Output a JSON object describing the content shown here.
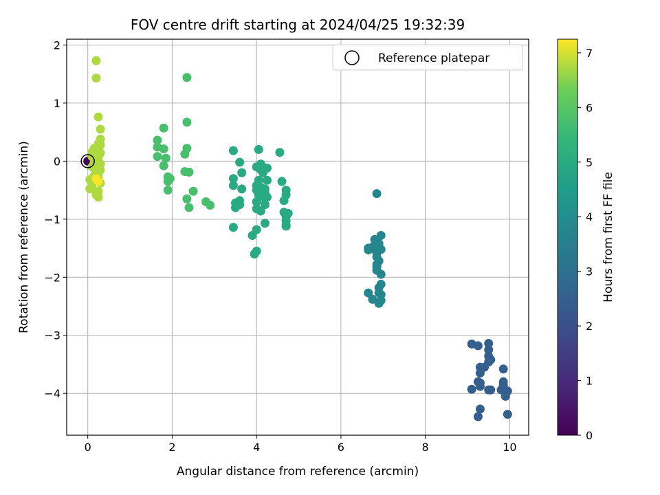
{
  "chart_data": {
    "type": "scatter",
    "title": "FOV centre drift starting at 2024/04/25 19:32:39",
    "xlabel": "Angular distance from reference (arcmin)",
    "ylabel": "Rotation from reference (arcmin)",
    "xlim": [
      -0.5,
      10.45
    ],
    "ylim": [
      -4.72,
      2.1
    ],
    "xticks": [
      0,
      2,
      4,
      6,
      8,
      10
    ],
    "yticks": [
      2,
      1,
      0,
      -1,
      -2,
      -3,
      -4
    ],
    "tick_labels_x": [
      "0",
      "2",
      "4",
      "6",
      "8",
      "10"
    ],
    "tick_labels_y": [
      "2",
      "1",
      "0",
      "−1",
      "−2",
      "−3",
      "−4"
    ],
    "grid": true,
    "colormap": "viridis",
    "colorbar": {
      "label": "Hours from first FF file",
      "range": [
        0,
        7.25
      ],
      "ticks": [
        0,
        1,
        2,
        3,
        4,
        5,
        6,
        7
      ],
      "tick_labels": [
        "0",
        "1",
        "2",
        "3",
        "4",
        "5",
        "6",
        "7"
      ]
    },
    "legend": {
      "position": "top-right",
      "entries": [
        "Reference platepar"
      ]
    },
    "reference_point": {
      "x": 0,
      "y": 0
    },
    "series": [
      {
        "points": [
          [
            0.0,
            0.0,
            0.1
          ],
          [
            9.1,
            -3.15,
            2.45
          ],
          [
            9.25,
            -3.18,
            2.45
          ],
          [
            9.5,
            -3.14,
            2.45
          ],
          [
            9.5,
            -3.25,
            2.45
          ],
          [
            9.5,
            -3.36,
            2.45
          ],
          [
            9.55,
            -3.42,
            2.45
          ],
          [
            9.5,
            -3.46,
            2.45
          ],
          [
            9.3,
            -3.55,
            2.45
          ],
          [
            9.4,
            -3.55,
            2.45
          ],
          [
            9.85,
            -3.58,
            2.45
          ],
          [
            9.3,
            -3.65,
            2.45
          ],
          [
            9.25,
            -3.8,
            2.45
          ],
          [
            9.3,
            -3.82,
            2.45
          ],
          [
            9.85,
            -3.8,
            2.45
          ],
          [
            9.3,
            -3.88,
            2.45
          ],
          [
            9.85,
            -3.86,
            2.45
          ],
          [
            9.1,
            -3.93,
            2.45
          ],
          [
            9.5,
            -3.94,
            2.45
          ],
          [
            9.55,
            -3.94,
            2.45
          ],
          [
            9.8,
            -3.94,
            2.45
          ],
          [
            9.95,
            -3.96,
            2.45
          ],
          [
            9.9,
            -4.05,
            2.45
          ],
          [
            9.3,
            -4.27,
            2.45
          ],
          [
            9.95,
            -4.36,
            2.45
          ],
          [
            9.25,
            -4.4,
            2.45
          ],
          [
            6.85,
            -0.56,
            3.75
          ],
          [
            6.95,
            -1.28,
            3.75
          ],
          [
            6.8,
            -1.35,
            3.75
          ],
          [
            6.9,
            -1.42,
            3.75
          ],
          [
            6.75,
            -1.48,
            3.75
          ],
          [
            6.65,
            -1.5,
            3.75
          ],
          [
            6.8,
            -1.52,
            3.75
          ],
          [
            6.95,
            -1.52,
            3.75
          ],
          [
            6.65,
            -1.53,
            3.75
          ],
          [
            6.85,
            -1.58,
            3.75
          ],
          [
            6.85,
            -1.65,
            3.75
          ],
          [
            6.9,
            -1.72,
            3.75
          ],
          [
            6.85,
            -1.78,
            3.75
          ],
          [
            6.85,
            -1.82,
            3.75
          ],
          [
            6.85,
            -1.88,
            3.75
          ],
          [
            6.95,
            -1.95,
            3.75
          ],
          [
            6.95,
            -2.12,
            3.75
          ],
          [
            6.9,
            -2.18,
            3.75
          ],
          [
            6.65,
            -2.27,
            3.75
          ],
          [
            6.9,
            -2.27,
            3.75
          ],
          [
            6.95,
            -2.3,
            3.75
          ],
          [
            6.75,
            -2.38,
            3.75
          ],
          [
            6.95,
            -2.4,
            3.75
          ],
          [
            6.9,
            -2.45,
            3.75
          ],
          [
            4.55,
            0.15,
            4.95
          ],
          [
            3.45,
            0.18,
            4.95
          ],
          [
            4.05,
            0.2,
            4.95
          ],
          [
            3.6,
            -0.02,
            4.95
          ],
          [
            4.1,
            -0.05,
            4.95
          ],
          [
            4.0,
            -0.1,
            4.95
          ],
          [
            4.15,
            -0.1,
            4.95
          ],
          [
            4.25,
            -0.12,
            4.95
          ],
          [
            4.1,
            -0.15,
            4.95
          ],
          [
            3.65,
            -0.2,
            4.95
          ],
          [
            4.15,
            -0.2,
            4.95
          ],
          [
            3.45,
            -0.3,
            4.95
          ],
          [
            4.05,
            -0.33,
            4.95
          ],
          [
            4.25,
            -0.33,
            4.95
          ],
          [
            4.6,
            -0.35,
            4.95
          ],
          [
            3.45,
            -0.42,
            4.95
          ],
          [
            4.0,
            -0.42,
            4.95
          ],
          [
            4.1,
            -0.45,
            4.95
          ],
          [
            4.2,
            -0.48,
            4.95
          ],
          [
            3.65,
            -0.48,
            4.95
          ],
          [
            4.7,
            -0.5,
            4.95
          ],
          [
            4.0,
            -0.5,
            4.95
          ],
          [
            4.2,
            -0.55,
            4.95
          ],
          [
            4.05,
            -0.58,
            4.95
          ],
          [
            4.7,
            -0.58,
            4.95
          ],
          [
            4.1,
            -0.62,
            4.95
          ],
          [
            4.25,
            -0.62,
            4.95
          ],
          [
            3.6,
            -0.68,
            4.95
          ],
          [
            4.65,
            -0.68,
            4.95
          ],
          [
            4.0,
            -0.7,
            4.95
          ],
          [
            3.5,
            -0.72,
            4.95
          ],
          [
            4.2,
            -0.75,
            4.95
          ],
          [
            3.6,
            -0.75,
            4.95
          ],
          [
            3.5,
            -0.8,
            4.95
          ],
          [
            4.0,
            -0.82,
            4.95
          ],
          [
            4.1,
            -0.86,
            4.95
          ],
          [
            4.65,
            -0.88,
            4.95
          ],
          [
            4.75,
            -0.9,
            4.95
          ],
          [
            4.7,
            -0.95,
            4.95
          ],
          [
            4.7,
            -1.03,
            4.95
          ],
          [
            4.2,
            -1.07,
            4.95
          ],
          [
            4.7,
            -1.1,
            4.95
          ],
          [
            4.7,
            -1.12,
            4.95
          ],
          [
            3.45,
            -1.14,
            4.95
          ],
          [
            4.0,
            -1.18,
            4.95
          ],
          [
            3.9,
            -1.28,
            4.95
          ],
          [
            4.0,
            -1.55,
            4.95
          ],
          [
            3.95,
            -1.6,
            4.95
          ],
          [
            2.35,
            1.44,
            5.75
          ],
          [
            2.35,
            0.67,
            5.75
          ],
          [
            1.8,
            0.57,
            5.75
          ],
          [
            1.65,
            0.36,
            5.75
          ],
          [
            2.35,
            0.22,
            5.75
          ],
          [
            1.65,
            0.24,
            5.75
          ],
          [
            1.8,
            0.21,
            5.75
          ],
          [
            2.3,
            0.12,
            5.75
          ],
          [
            1.65,
            0.08,
            5.75
          ],
          [
            1.85,
            0.05,
            5.75
          ],
          [
            1.8,
            -0.08,
            5.75
          ],
          [
            2.3,
            -0.18,
            5.75
          ],
          [
            2.4,
            -0.19,
            5.75
          ],
          [
            1.9,
            -0.27,
            5.75
          ],
          [
            1.95,
            -0.3,
            5.75
          ],
          [
            1.9,
            -0.35,
            5.75
          ],
          [
            1.9,
            -0.5,
            5.75
          ],
          [
            2.5,
            -0.52,
            5.75
          ],
          [
            2.35,
            -0.65,
            5.75
          ],
          [
            2.8,
            -0.7,
            5.75
          ],
          [
            2.9,
            -0.76,
            5.75
          ],
          [
            2.4,
            -0.8,
            5.75
          ],
          [
            0.2,
            1.73,
            6.75
          ],
          [
            0.2,
            1.43,
            6.75
          ],
          [
            0.25,
            0.76,
            6.75
          ],
          [
            0.3,
            0.55,
            6.75
          ],
          [
            0.3,
            0.38,
            6.75
          ],
          [
            0.25,
            0.3,
            6.75
          ],
          [
            0.3,
            0.28,
            6.75
          ],
          [
            0.15,
            0.22,
            6.75
          ],
          [
            0.25,
            0.2,
            6.75
          ],
          [
            0.1,
            0.15,
            6.75
          ],
          [
            0.3,
            0.14,
            6.75
          ],
          [
            0.2,
            0.12,
            6.75
          ],
          [
            0.1,
            0.08,
            6.75
          ],
          [
            0.25,
            0.06,
            6.75
          ],
          [
            0.2,
            0.02,
            6.75
          ],
          [
            0.15,
            -0.03,
            6.75
          ],
          [
            0.3,
            -0.05,
            6.75
          ],
          [
            0.2,
            -0.08,
            6.75
          ],
          [
            0.1,
            -0.1,
            6.75
          ],
          [
            0.25,
            -0.12,
            6.75
          ],
          [
            0.3,
            -0.15,
            6.75
          ],
          [
            0.2,
            -0.18,
            6.75
          ],
          [
            0.25,
            -0.22,
            6.75
          ],
          [
            0.15,
            -0.25,
            6.75
          ],
          [
            0.05,
            -0.32,
            6.75
          ],
          [
            0.25,
            -0.3,
            6.75
          ],
          [
            0.2,
            -0.35,
            6.75
          ],
          [
            0.3,
            -0.38,
            6.75
          ],
          [
            0.1,
            -0.42,
            6.75
          ],
          [
            0.05,
            -0.48,
            6.75
          ],
          [
            0.25,
            -0.52,
            6.75
          ],
          [
            0.2,
            -0.58,
            6.75
          ],
          [
            0.25,
            -0.62,
            6.75
          ],
          [
            0.25,
            -0.35,
            7.2
          ],
          [
            0.2,
            -0.3,
            7.2
          ]
        ]
      }
    ]
  }
}
